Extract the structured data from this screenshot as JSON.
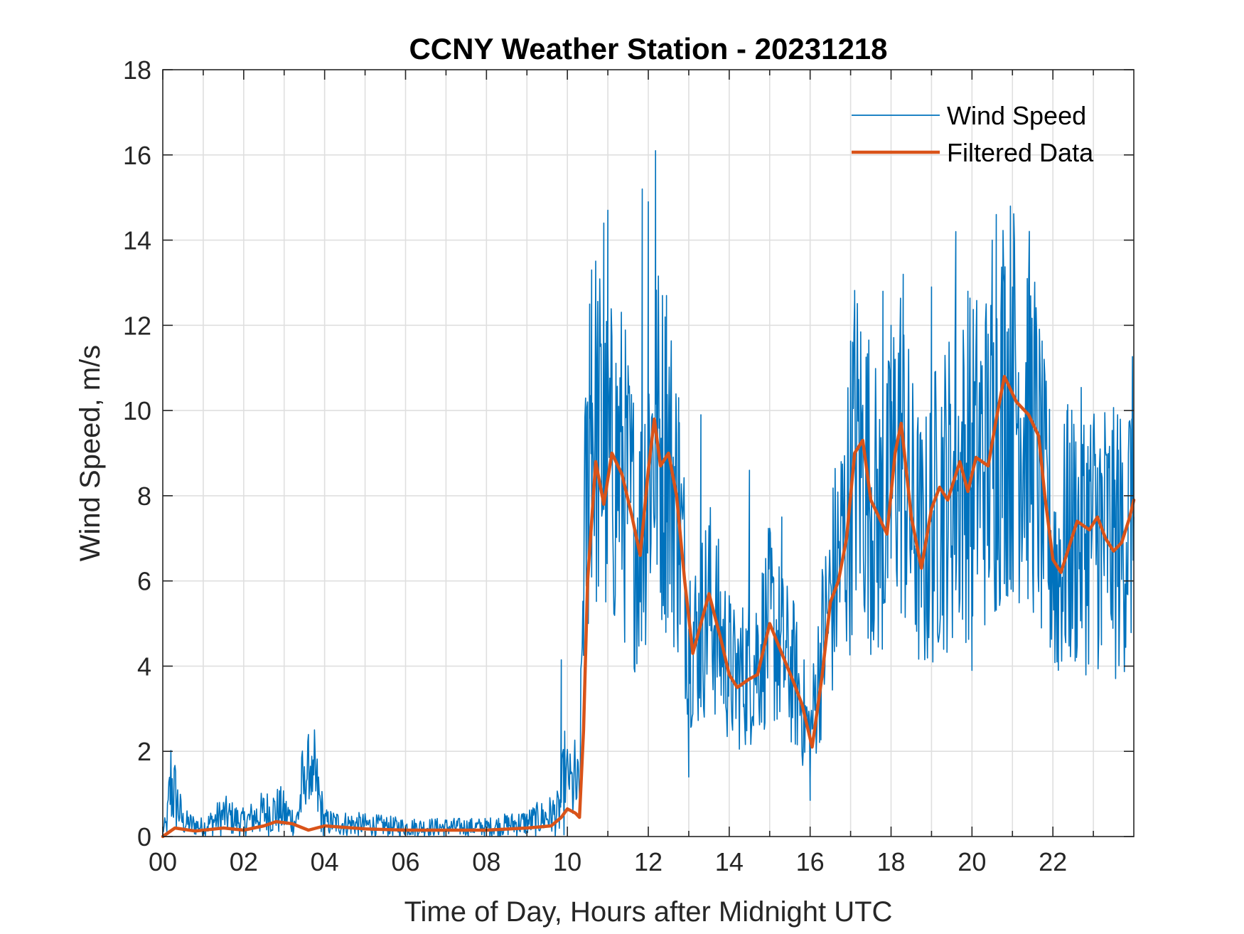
{
  "chart_data": {
    "type": "line",
    "title": "CCNY Weather Station - 20231218",
    "xlabel": "Time of Day, Hours after Midnight UTC",
    "ylabel": "Wind Speed, m/s",
    "xlim": [
      0,
      24
    ],
    "ylim": [
      0,
      18
    ],
    "x_ticks": [
      0,
      2,
      4,
      6,
      8,
      10,
      12,
      14,
      16,
      18,
      20,
      22
    ],
    "x_tick_labels": [
      "00",
      "02",
      "04",
      "06",
      "08",
      "10",
      "12",
      "14",
      "16",
      "18",
      "20",
      "22"
    ],
    "y_ticks": [
      0,
      2,
      4,
      6,
      8,
      10,
      12,
      14,
      16,
      18
    ],
    "y_tick_labels": [
      "0",
      "2",
      "4",
      "6",
      "8",
      "10",
      "12",
      "14",
      "16",
      "18"
    ],
    "grid": true,
    "legend_position": "top-right",
    "series": [
      {
        "name": "Wind Speed",
        "color": "#0072BD",
        "kind": "raw",
        "envelope": [
          {
            "x": 0.0,
            "y": 0.15
          },
          {
            "x": 0.1,
            "y": 0.25
          },
          {
            "x": 0.2,
            "y": 1.15
          },
          {
            "x": 0.5,
            "y": 0.3
          },
          {
            "x": 1.0,
            "y": 0.2
          },
          {
            "x": 1.5,
            "y": 0.45
          },
          {
            "x": 2.0,
            "y": 0.3
          },
          {
            "x": 2.5,
            "y": 0.5
          },
          {
            "x": 2.9,
            "y": 0.55
          },
          {
            "x": 3.3,
            "y": 0.3
          },
          {
            "x": 3.6,
            "y": 1.65
          },
          {
            "x": 4.0,
            "y": 0.3
          },
          {
            "x": 5.0,
            "y": 0.25
          },
          {
            "x": 6.0,
            "y": 0.2
          },
          {
            "x": 7.0,
            "y": 0.2
          },
          {
            "x": 8.0,
            "y": 0.2
          },
          {
            "x": 9.0,
            "y": 0.3
          },
          {
            "x": 9.8,
            "y": 0.5
          },
          {
            "x": 10.0,
            "y": 1.5
          },
          {
            "x": 10.3,
            "y": 0.8
          },
          {
            "x": 10.4,
            "y": 6.5
          },
          {
            "x": 10.6,
            "y": 10.0
          },
          {
            "x": 11.0,
            "y": 8.5
          },
          {
            "x": 11.3,
            "y": 8.8
          },
          {
            "x": 11.6,
            "y": 7.5
          },
          {
            "x": 11.8,
            "y": 7.0
          },
          {
            "x": 12.0,
            "y": 8.8
          },
          {
            "x": 12.2,
            "y": 9.4
          },
          {
            "x": 12.5,
            "y": 8.8
          },
          {
            "x": 12.75,
            "y": 7.5
          },
          {
            "x": 13.0,
            "y": 5.0
          },
          {
            "x": 13.2,
            "y": 4.5
          },
          {
            "x": 13.5,
            "y": 5.5
          },
          {
            "x": 13.8,
            "y": 4.6
          },
          {
            "x": 14.1,
            "y": 3.7
          },
          {
            "x": 14.5,
            "y": 3.9
          },
          {
            "x": 14.8,
            "y": 4.5
          },
          {
            "x": 15.0,
            "y": 5.0
          },
          {
            "x": 15.3,
            "y": 4.3
          },
          {
            "x": 15.6,
            "y": 3.8
          },
          {
            "x": 16.0,
            "y": 2.3
          },
          {
            "x": 16.3,
            "y": 4.5
          },
          {
            "x": 16.6,
            "y": 6.0
          },
          {
            "x": 16.9,
            "y": 7.3
          },
          {
            "x": 17.1,
            "y": 9.2
          },
          {
            "x": 17.4,
            "y": 8.5
          },
          {
            "x": 17.7,
            "y": 7.3
          },
          {
            "x": 17.9,
            "y": 7.5
          },
          {
            "x": 18.2,
            "y": 9.5
          },
          {
            "x": 18.5,
            "y": 7.5
          },
          {
            "x": 18.8,
            "y": 6.6
          },
          {
            "x": 19.2,
            "y": 8.0
          },
          {
            "x": 19.5,
            "y": 8.2
          },
          {
            "x": 20.0,
            "y": 8.8
          },
          {
            "x": 20.5,
            "y": 9.0
          },
          {
            "x": 20.8,
            "y": 10.5
          },
          {
            "x": 21.1,
            "y": 10.3
          },
          {
            "x": 21.5,
            "y": 9.6
          },
          {
            "x": 21.8,
            "y": 7.5
          },
          {
            "x": 22.1,
            "y": 6.3
          },
          {
            "x": 22.4,
            "y": 7.0
          },
          {
            "x": 22.8,
            "y": 7.2
          },
          {
            "x": 23.2,
            "y": 7.3
          },
          {
            "x": 23.6,
            "y": 6.7
          },
          {
            "x": 24.0,
            "y": 7.8
          }
        ],
        "spikes": [
          {
            "x": 0.18,
            "y": 1.15
          },
          {
            "x": 3.65,
            "y": 1.65
          },
          {
            "x": 9.85,
            "y": 4.15
          },
          {
            "x": 10.55,
            "y": 12.5
          },
          {
            "x": 10.6,
            "y": 13.3
          },
          {
            "x": 10.9,
            "y": 14.4
          },
          {
            "x": 11.0,
            "y": 14.7
          },
          {
            "x": 11.85,
            "y": 15.2
          },
          {
            "x": 12.0,
            "y": 14.9
          },
          {
            "x": 12.18,
            "y": 16.1
          },
          {
            "x": 12.45,
            "y": 12.7
          },
          {
            "x": 12.75,
            "y": 10.3
          },
          {
            "x": 13.0,
            "y": 1.4
          },
          {
            "x": 13.3,
            "y": 9.9
          },
          {
            "x": 14.5,
            "y": 8.6
          },
          {
            "x": 15.3,
            "y": 7.5
          },
          {
            "x": 16.0,
            "y": 0.85
          },
          {
            "x": 17.1,
            "y": 12.6
          },
          {
            "x": 17.8,
            "y": 12.8
          },
          {
            "x": 18.0,
            "y": 12.0
          },
          {
            "x": 18.3,
            "y": 13.2
          },
          {
            "x": 19.0,
            "y": 12.9
          },
          {
            "x": 19.6,
            "y": 14.2
          },
          {
            "x": 19.9,
            "y": 12.8
          },
          {
            "x": 20.0,
            "y": 3.9
          },
          {
            "x": 20.5,
            "y": 14.0
          },
          {
            "x": 20.6,
            "y": 14.6
          },
          {
            "x": 20.8,
            "y": 13.0
          },
          {
            "x": 21.0,
            "y": 12.9
          },
          {
            "x": 21.4,
            "y": 11.0
          },
          {
            "x": 22.1,
            "y": 4.1
          },
          {
            "x": 22.35,
            "y": 10.0
          },
          {
            "x": 23.2,
            "y": 4.5
          },
          {
            "x": 23.6,
            "y": 9.9
          },
          {
            "x": 23.95,
            "y": 9.8
          }
        ]
      },
      {
        "name": "Filtered Data",
        "color": "#D95319",
        "kind": "smooth",
        "points": [
          {
            "x": 0.0,
            "y": 0.0
          },
          {
            "x": 0.3,
            "y": 0.2
          },
          {
            "x": 0.8,
            "y": 0.13
          },
          {
            "x": 1.5,
            "y": 0.2
          },
          {
            "x": 2.0,
            "y": 0.15
          },
          {
            "x": 2.5,
            "y": 0.25
          },
          {
            "x": 2.8,
            "y": 0.35
          },
          {
            "x": 3.2,
            "y": 0.3
          },
          {
            "x": 3.6,
            "y": 0.15
          },
          {
            "x": 4.0,
            "y": 0.25
          },
          {
            "x": 5.0,
            "y": 0.18
          },
          {
            "x": 6.0,
            "y": 0.15
          },
          {
            "x": 7.0,
            "y": 0.15
          },
          {
            "x": 8.0,
            "y": 0.15
          },
          {
            "x": 9.0,
            "y": 0.2
          },
          {
            "x": 9.6,
            "y": 0.25
          },
          {
            "x": 9.85,
            "y": 0.45
          },
          {
            "x": 10.0,
            "y": 0.65
          },
          {
            "x": 10.2,
            "y": 0.55
          },
          {
            "x": 10.3,
            "y": 0.45
          },
          {
            "x": 10.4,
            "y": 2.5
          },
          {
            "x": 10.5,
            "y": 6.0
          },
          {
            "x": 10.7,
            "y": 8.8
          },
          {
            "x": 10.9,
            "y": 7.8
          },
          {
            "x": 11.1,
            "y": 9.0
          },
          {
            "x": 11.35,
            "y": 8.5
          },
          {
            "x": 11.6,
            "y": 7.5
          },
          {
            "x": 11.8,
            "y": 6.6
          },
          {
            "x": 12.0,
            "y": 8.6
          },
          {
            "x": 12.15,
            "y": 9.8
          },
          {
            "x": 12.3,
            "y": 8.7
          },
          {
            "x": 12.5,
            "y": 9.0
          },
          {
            "x": 12.7,
            "y": 8.0
          },
          {
            "x": 12.9,
            "y": 6.0
          },
          {
            "x": 13.1,
            "y": 4.3
          },
          {
            "x": 13.3,
            "y": 5.0
          },
          {
            "x": 13.5,
            "y": 5.7
          },
          {
            "x": 13.8,
            "y": 4.6
          },
          {
            "x": 14.0,
            "y": 3.8
          },
          {
            "x": 14.2,
            "y": 3.5
          },
          {
            "x": 14.5,
            "y": 3.7
          },
          {
            "x": 14.7,
            "y": 3.8
          },
          {
            "x": 15.0,
            "y": 5.0
          },
          {
            "x": 15.3,
            "y": 4.3
          },
          {
            "x": 15.6,
            "y": 3.6
          },
          {
            "x": 15.8,
            "y": 3.1
          },
          {
            "x": 16.05,
            "y": 2.1
          },
          {
            "x": 16.3,
            "y": 3.8
          },
          {
            "x": 16.5,
            "y": 5.5
          },
          {
            "x": 16.7,
            "y": 6.0
          },
          {
            "x": 16.9,
            "y": 7.0
          },
          {
            "x": 17.1,
            "y": 9.0
          },
          {
            "x": 17.3,
            "y": 9.3
          },
          {
            "x": 17.5,
            "y": 7.9
          },
          {
            "x": 17.7,
            "y": 7.5
          },
          {
            "x": 17.9,
            "y": 7.1
          },
          {
            "x": 18.1,
            "y": 9.0
          },
          {
            "x": 18.25,
            "y": 9.7
          },
          {
            "x": 18.5,
            "y": 7.5
          },
          {
            "x": 18.75,
            "y": 6.3
          },
          {
            "x": 19.0,
            "y": 7.7
          },
          {
            "x": 19.2,
            "y": 8.2
          },
          {
            "x": 19.4,
            "y": 7.9
          },
          {
            "x": 19.7,
            "y": 8.8
          },
          {
            "x": 19.9,
            "y": 8.1
          },
          {
            "x": 20.1,
            "y": 8.9
          },
          {
            "x": 20.4,
            "y": 8.7
          },
          {
            "x": 20.6,
            "y": 9.8
          },
          {
            "x": 20.8,
            "y": 10.8
          },
          {
            "x": 21.1,
            "y": 10.2
          },
          {
            "x": 21.4,
            "y": 9.9
          },
          {
            "x": 21.65,
            "y": 9.4
          },
          {
            "x": 21.8,
            "y": 8.0
          },
          {
            "x": 22.0,
            "y": 6.5
          },
          {
            "x": 22.2,
            "y": 6.2
          },
          {
            "x": 22.4,
            "y": 6.8
          },
          {
            "x": 22.6,
            "y": 7.4
          },
          {
            "x": 22.9,
            "y": 7.2
          },
          {
            "x": 23.1,
            "y": 7.5
          },
          {
            "x": 23.3,
            "y": 7.0
          },
          {
            "x": 23.5,
            "y": 6.7
          },
          {
            "x": 23.7,
            "y": 6.9
          },
          {
            "x": 23.9,
            "y": 7.5
          },
          {
            "x": 24.0,
            "y": 7.9
          }
        ]
      }
    ]
  }
}
